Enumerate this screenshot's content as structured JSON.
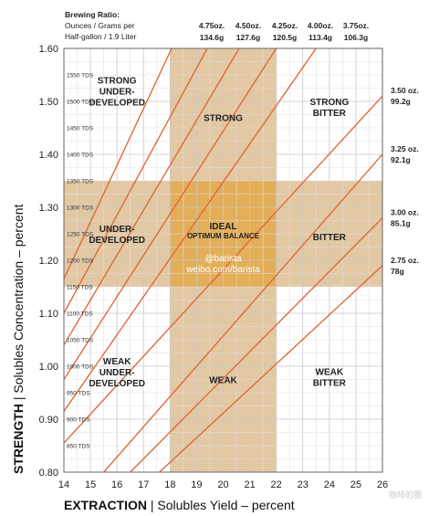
{
  "chart_data": {
    "type": "line",
    "x_axis": {
      "label_bold": "EXTRACTION",
      "label_rest": "Solubles Yield – percent",
      "ticks": [
        14,
        15,
        16,
        17,
        18,
        19,
        20,
        21,
        22,
        23,
        24,
        25,
        26
      ],
      "range": [
        14,
        26
      ]
    },
    "y_axis": {
      "label_bold": "STRENGTH",
      "label_rest": "Solubles Concentration – percent",
      "ticks": [
        "0.80",
        "0.90",
        "1.00",
        "1.10",
        "1.20",
        "1.30",
        "1.40",
        "1.50",
        "1.60"
      ],
      "range": [
        0.8,
        1.6
      ]
    },
    "tds_labels": [
      {
        "y": 1.55,
        "label": "1550 TDS"
      },
      {
        "y": 1.5,
        "label": "1500 TDS"
      },
      {
        "y": 1.45,
        "label": "1450 TDS"
      },
      {
        "y": 1.4,
        "label": "1400 TDS"
      },
      {
        "y": 1.35,
        "label": "1350 TDS"
      },
      {
        "y": 1.3,
        "label": "1300 TDS"
      },
      {
        "y": 1.25,
        "label": "1250 TDS"
      },
      {
        "y": 1.2,
        "label": "1200 TDS"
      },
      {
        "y": 1.15,
        "label": "1150 TDS"
      },
      {
        "y": 1.1,
        "label": "1100 TDS"
      },
      {
        "y": 1.05,
        "label": "1050 TDS"
      },
      {
        "y": 1.0,
        "label": "1000 TDS"
      },
      {
        "y": 0.95,
        "label": "950 TDS"
      },
      {
        "y": 0.9,
        "label": "900 TDS"
      },
      {
        "y": 0.85,
        "label": "850 TDS"
      }
    ],
    "bands": {
      "ideal_extraction": [
        18,
        22
      ],
      "ideal_strength": [
        1.15,
        1.35
      ]
    },
    "header": {
      "line1": "Brewing Ratio:",
      "line2": "Ounces / Grams per",
      "line3": "Half-gallon / 1.9 Liter"
    },
    "series": [
      {
        "oz": "4.75oz.",
        "g": "134.6g",
        "points": [
          [
            14,
            1.165
          ],
          [
            18.06,
            1.6
          ]
        ]
      },
      {
        "oz": "4.50oz.",
        "g": "127.6g",
        "points": [
          [
            14,
            1.1
          ],
          [
            19.4,
            1.6
          ]
        ]
      },
      {
        "oz": "4.25oz.",
        "g": "120.5g",
        "points": [
          [
            14,
            1.04
          ],
          [
            20.6,
            1.6
          ]
        ]
      },
      {
        "oz": "4.00oz.",
        "g": "113.4g",
        "points": [
          [
            14,
            0.975
          ],
          [
            22.0,
            1.6
          ]
        ]
      },
      {
        "oz": "3.75oz.",
        "g": "106.3g",
        "points": [
          [
            14,
            0.915
          ],
          [
            23.5,
            1.6
          ]
        ]
      },
      {
        "oz": "3.50 oz.",
        "g": "99.2g",
        "points": [
          [
            14,
            0.855
          ],
          [
            26,
            1.51
          ]
        ]
      },
      {
        "oz": "3.25 oz.",
        "g": "92.1g",
        "points": [
          [
            15.5,
            0.8
          ],
          [
            26,
            1.4
          ]
        ]
      },
      {
        "oz": "3.00 oz.",
        "g": "85.1g",
        "points": [
          [
            16.5,
            0.8
          ],
          [
            26,
            1.28
          ]
        ]
      },
      {
        "oz": "2.75 oz.",
        "g": "78g",
        "points": [
          [
            17.6,
            0.8
          ],
          [
            26,
            1.19
          ]
        ]
      }
    ],
    "regions": [
      {
        "lines": [
          "STRONG",
          "UNDER-",
          "DEVELOPED"
        ],
        "x": 16.0,
        "y": 1.52
      },
      {
        "lines": [
          "STRONG"
        ],
        "x": 20.0,
        "y": 1.47
      },
      {
        "lines": [
          "STRONG",
          "BITTER"
        ],
        "x": 24.0,
        "y": 1.49
      },
      {
        "lines": [
          "UNDER-",
          "DEVELOPED"
        ],
        "x": 16.0,
        "y": 1.25
      },
      {
        "lines": [
          "IDEAL"
        ],
        "x": 20.0,
        "y": 1.255,
        "small": [
          "OPTIMUM BALANCE"
        ]
      },
      {
        "lines": [
          "BITTER"
        ],
        "x": 24.0,
        "y": 1.245
      },
      {
        "lines": [
          "WEAK",
          "UNDER-",
          "DEVELOPED"
        ],
        "x": 16.0,
        "y": 0.99
      },
      {
        "lines": [
          "WEAK"
        ],
        "x": 20.0,
        "y": 0.975
      },
      {
        "lines": [
          "WEAK",
          "BITTER"
        ],
        "x": 24.0,
        "y": 0.98
      }
    ],
    "watermark": [
      "@barista",
      "weibo.com/barista"
    ],
    "corner_watermark": "咖啡的圈",
    "colors": {
      "band": "#e2c8a3",
      "ideal": "#e3ae58",
      "line": "#e06a3c",
      "grid": "#c8c8c8",
      "grid_minor": "#e0e0e0"
    },
    "grid": true
  }
}
